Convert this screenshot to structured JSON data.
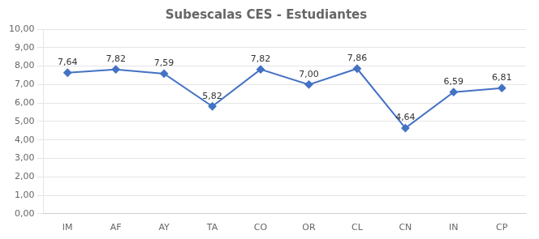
{
  "chart_data": {
    "type": "line",
    "title": "Subescalas CES - Estudiantes",
    "categories": [
      "IM",
      "AF",
      "AY",
      "TA",
      "CO",
      "OR",
      "CL",
      "CN",
      "IN",
      "CP"
    ],
    "values": [
      7.64,
      7.82,
      7.59,
      5.82,
      7.82,
      7.0,
      7.86,
      4.64,
      6.59,
      6.81
    ],
    "value_labels": [
      "7,64",
      "7,82",
      "7,59",
      "5,82",
      "7,82",
      "7,00",
      "7,86",
      "4,64",
      "6,59",
      "6,81"
    ],
    "data_labels": true,
    "color": "#4472C4",
    "marker": "diamond",
    "ylim": [
      0,
      10
    ],
    "yticks": [
      {
        "value": 0,
        "label": "0,00"
      },
      {
        "value": 1,
        "label": "1,00"
      },
      {
        "value": 2,
        "label": "2,00"
      },
      {
        "value": 3,
        "label": "3,00"
      },
      {
        "value": 4,
        "label": "4,00"
      },
      {
        "value": 5,
        "label": "5,00"
      },
      {
        "value": 6,
        "label": "6,00"
      },
      {
        "value": 7,
        "label": "7,00"
      },
      {
        "value": 8,
        "label": "8,00"
      },
      {
        "value": 9,
        "label": "9,00"
      },
      {
        "value": 10,
        "label": "10,00"
      }
    ],
    "grid": true
  }
}
